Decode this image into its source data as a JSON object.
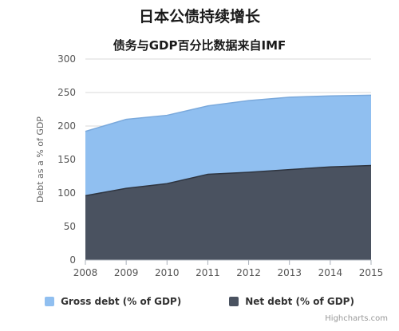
{
  "chart_data": {
    "type": "area",
    "title": "日本公债持续增长",
    "subtitle": "债务与GDP百分比数据来自IMF",
    "ylabel": "Debt as a % of GDP",
    "ylim": [
      0,
      300
    ],
    "y_ticks": [
      0,
      50,
      100,
      150,
      200,
      250,
      300
    ],
    "x": [
      2008,
      2009,
      2010,
      2011,
      2012,
      2013,
      2014,
      2015
    ],
    "grid": true,
    "legend": "bottom-center",
    "series": [
      {
        "name": "Gross debt (% of GDP)",
        "color": "#90bff0",
        "values": [
          192,
          210,
          216,
          230,
          238,
          243,
          245,
          246
        ]
      },
      {
        "name": "Net debt (% of GDP)",
        "color": "#4a5260",
        "values": [
          96,
          107,
          114,
          128,
          131,
          135,
          139,
          141
        ]
      }
    ],
    "credits": "Highcharts.com"
  }
}
